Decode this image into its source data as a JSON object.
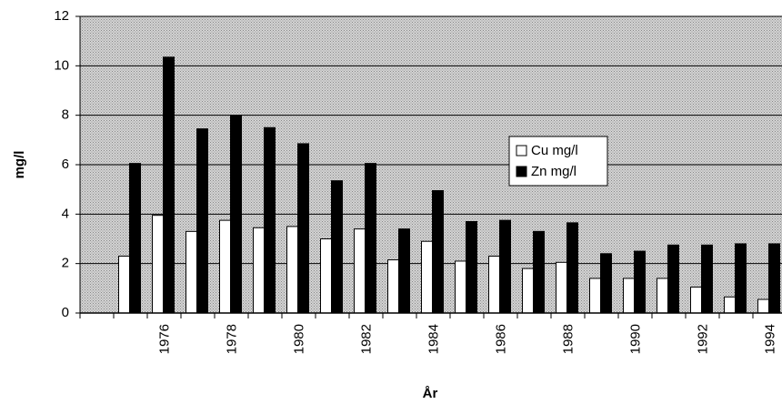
{
  "chart_data": {
    "type": "bar",
    "y_label": "mg/l",
    "x_label": "År",
    "categories": [
      null,
      null,
      "1976",
      null,
      "1978",
      null,
      "1980",
      null,
      "1982",
      null,
      "1984",
      null,
      "1986",
      null,
      "1988",
      null,
      "1990",
      null,
      "1992",
      null,
      "1994"
    ],
    "series": [
      {
        "name": "Cu mg/l",
        "color": "#ffffff",
        "values": [
          null,
          2.3,
          3.95,
          3.3,
          3.75,
          3.45,
          3.5,
          3.0,
          3.4,
          2.15,
          2.9,
          2.1,
          2.3,
          1.8,
          2.05,
          1.4,
          1.4,
          1.4,
          1.05,
          0.65,
          0.55
        ]
      },
      {
        "name": "Zn mg/l",
        "color": "#000000",
        "values": [
          null,
          6.05,
          10.35,
          7.45,
          8.0,
          7.5,
          6.85,
          5.35,
          6.05,
          3.4,
          4.95,
          3.7,
          3.75,
          3.3,
          3.65,
          2.4,
          2.5,
          2.75,
          2.75,
          2.8,
          2.8
        ]
      }
    ],
    "ylim": [
      0,
      12
    ],
    "yticks": [
      0,
      2,
      4,
      6,
      8,
      10,
      12
    ],
    "grid": true
  }
}
